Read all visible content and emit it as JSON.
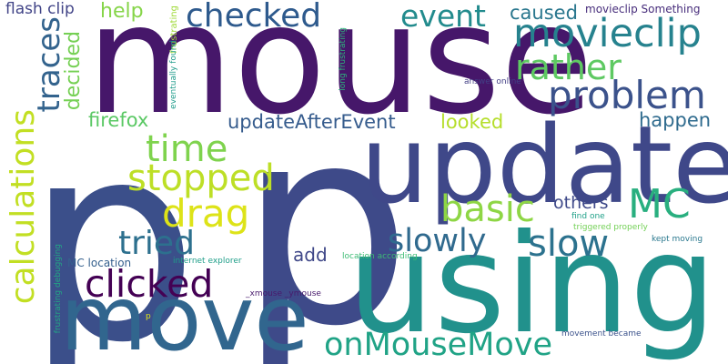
{
  "words": [
    {
      "text": "p",
      "color": "#3b4f8a"
    },
    {
      "text": "mouse",
      "color": "#46176a"
    },
    {
      "text": "p",
      "color": "#3e4a89"
    },
    {
      "text": "update",
      "color": "#3f4889"
    },
    {
      "text": "using",
      "color": "#21918c"
    },
    {
      "text": "move",
      "color": "#31668e"
    },
    {
      "text": "checked",
      "color": "#2e5a8d"
    },
    {
      "text": "movieclip",
      "color": "#26828e"
    },
    {
      "text": "event",
      "color": "#228b8d"
    },
    {
      "text": "rather",
      "color": "#5ec962"
    },
    {
      "text": "problem",
      "color": "#3b528b"
    },
    {
      "text": "calculations",
      "color": "#c2df23"
    },
    {
      "text": "traces",
      "color": "#33638d"
    },
    {
      "text": "decided",
      "color": "#75d054"
    },
    {
      "text": "help",
      "color": "#86d549"
    },
    {
      "text": "flash clip",
      "color": "#414487"
    },
    {
      "text": "time",
      "color": "#7fd34e"
    },
    {
      "text": "stopped",
      "color": "#bddf26"
    },
    {
      "text": "drag",
      "color": "#dde318"
    },
    {
      "text": "tried",
      "color": "#2d708e"
    },
    {
      "text": "clicked",
      "color": "#440154"
    },
    {
      "text": "basic",
      "color": "#8ed645"
    },
    {
      "text": "MC",
      "color": "#29af7f"
    },
    {
      "text": "slowly",
      "color": "#306a8e"
    },
    {
      "text": "slow",
      "color": "#2c728e"
    },
    {
      "text": "others",
      "color": "#3e4989"
    },
    {
      "text": "onMouseMove",
      "color": "#20a386"
    },
    {
      "text": "updateAfterEvent",
      "color": "#365c8d"
    },
    {
      "text": "looked",
      "color": "#b5de2b"
    },
    {
      "text": "happen",
      "color": "#2f6b8e"
    },
    {
      "text": "firefox",
      "color": "#5ac864"
    },
    {
      "text": "caused",
      "color": "#2a778e"
    },
    {
      "text": "movieclip Something",
      "color": "#472d7b"
    },
    {
      "text": "add",
      "color": "#3f4788"
    },
    {
      "text": "MC location",
      "color": "#35608d"
    },
    {
      "text": "internet explorer",
      "color": "#1f9e89"
    },
    {
      "text": "_xmouse _ymouse",
      "color": "#481a6c"
    },
    {
      "text": "frustrating",
      "color": "#a0da39"
    },
    {
      "text": "eventually found",
      "color": "#1e9b8a"
    },
    {
      "text": "long frustrating",
      "color": "#2eb37c"
    },
    {
      "text": "answer online",
      "color": "#423f85"
    },
    {
      "text": "location according",
      "color": "#3dbc74"
    },
    {
      "text": "find one",
      "color": "#1fa088"
    },
    {
      "text": "triggered properly",
      "color": "#73d056"
    },
    {
      "text": "kept moving",
      "color": "#2a788e"
    },
    {
      "text": "movement became",
      "color": "#3b528b"
    },
    {
      "text": "frustrating debugging",
      "color": "#22a785"
    },
    {
      "text": "p",
      "color": "#dfe318"
    }
  ]
}
